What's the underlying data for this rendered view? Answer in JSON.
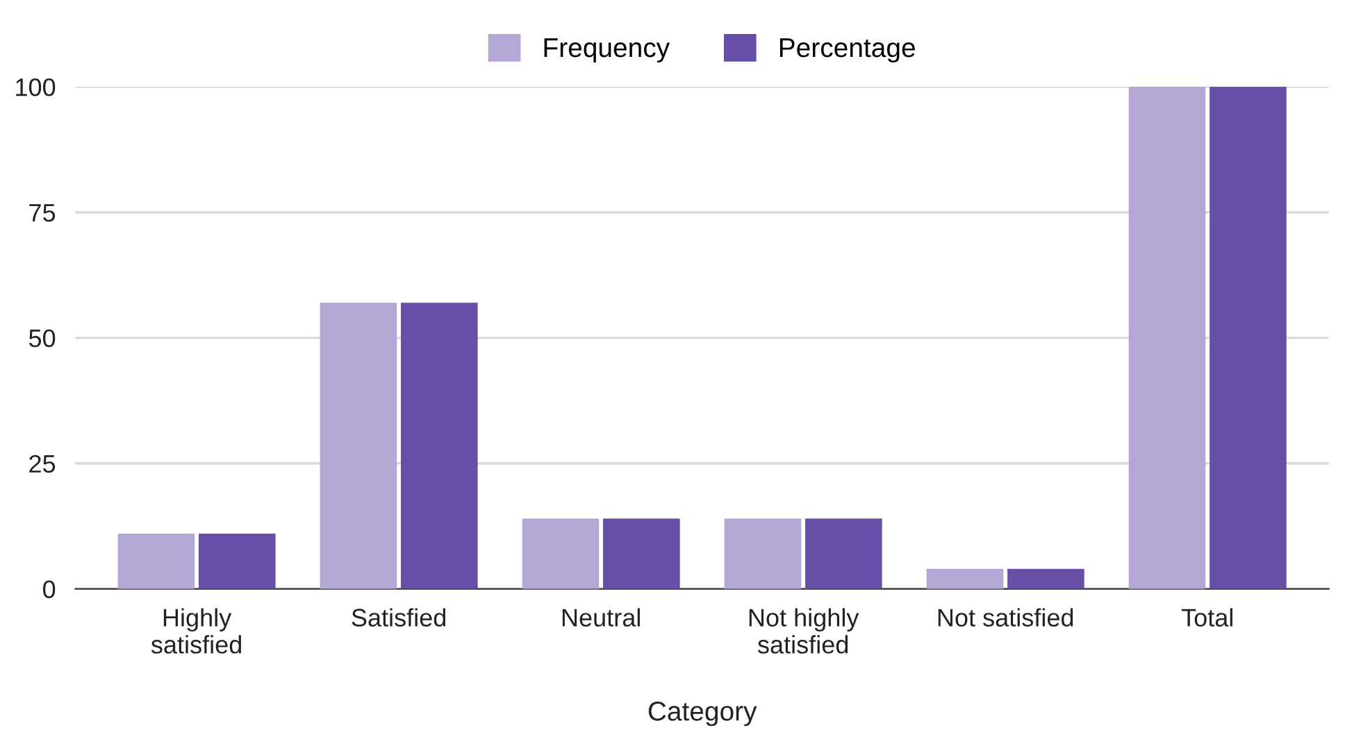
{
  "chart_data": {
    "type": "bar",
    "xlabel": "Category",
    "categories": [
      "Highly\nsatisfied",
      "Satisfied",
      "Neutral",
      "Not highly\nsatisfied",
      "Not satisfied",
      "Total"
    ],
    "series": [
      {
        "name": "Frequency",
        "color": "#b4a7d6",
        "values": [
          11,
          57,
          14,
          14,
          4,
          100
        ]
      },
      {
        "name": "Percentage",
        "color": "#674ea7",
        "values": [
          11,
          57,
          14,
          14,
          4,
          100
        ]
      }
    ],
    "ylim": [
      0,
      100
    ],
    "yticks": [
      0,
      25,
      50,
      75,
      100
    ],
    "grid": "y",
    "legend": "top"
  }
}
